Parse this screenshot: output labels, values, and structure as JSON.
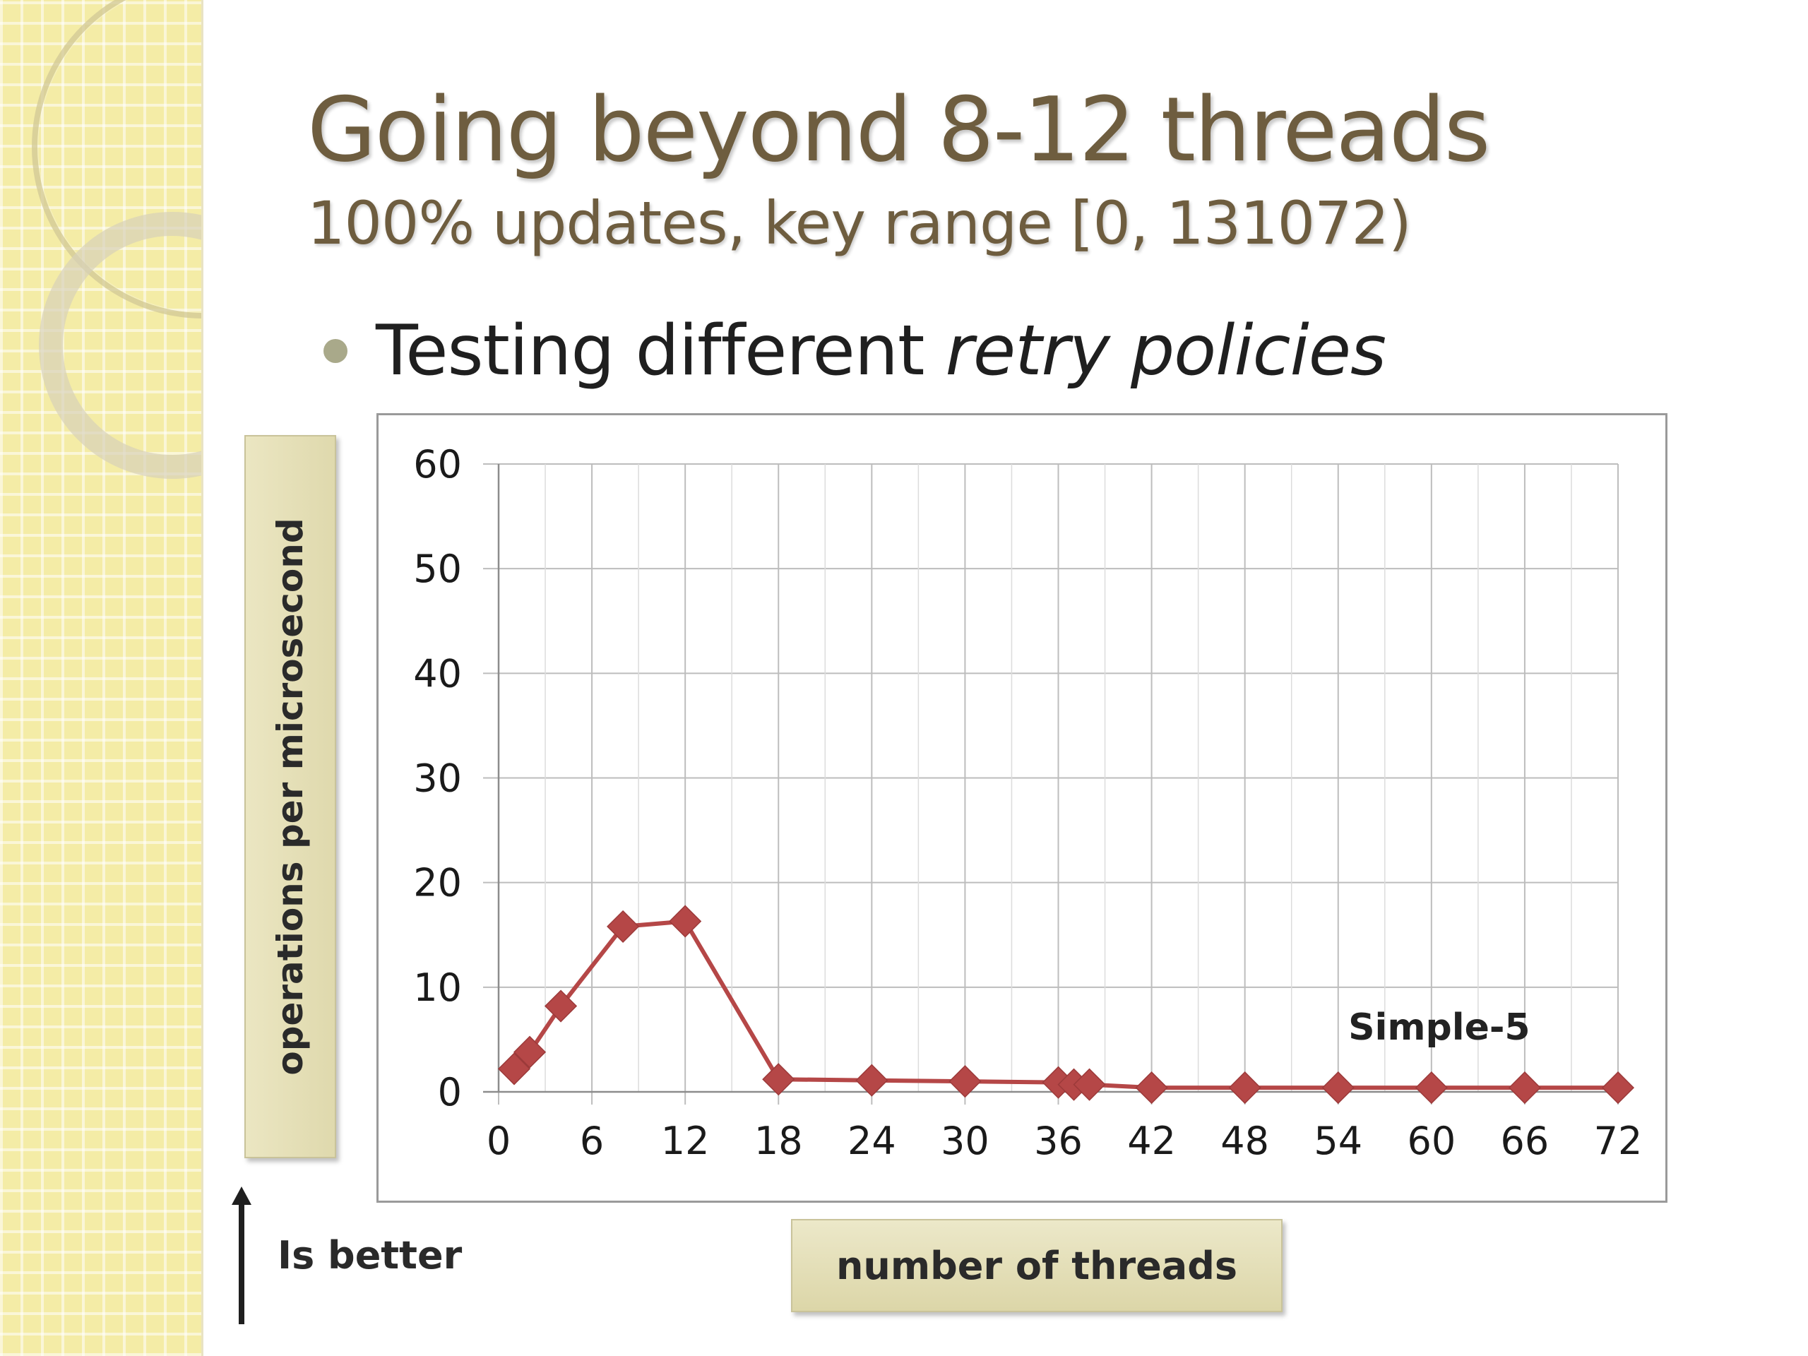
{
  "slide": {
    "title": "Going beyond 8-12 threads",
    "subtitle": "100% updates, key range [0, 131072)",
    "bullet_prefix": "Testing different ",
    "bullet_emphasis": "retry policies",
    "is_better_label": "Is better"
  },
  "chart_data": {
    "type": "line",
    "title": "",
    "xlabel": "number of threads",
    "ylabel": "operations per microsecond",
    "x_ticks": [
      0,
      6,
      12,
      18,
      24,
      30,
      36,
      42,
      48,
      54,
      60,
      66,
      72
    ],
    "y_ticks": [
      0,
      10,
      20,
      30,
      40,
      50,
      60
    ],
    "xlim": [
      0,
      72
    ],
    "ylim": [
      0,
      60
    ],
    "grid": true,
    "series": [
      {
        "name": "Simple-5",
        "color": "#b54747",
        "marker": "diamond",
        "x": [
          1,
          2,
          4,
          8,
          12,
          18,
          24,
          30,
          36,
          37,
          38,
          42,
          48,
          54,
          60,
          66,
          72
        ],
        "y": [
          2.2,
          3.8,
          8.2,
          15.8,
          16.3,
          1.2,
          1.1,
          1.0,
          0.9,
          0.7,
          0.7,
          0.4,
          0.4,
          0.4,
          0.4,
          0.4,
          0.4
        ]
      }
    ]
  }
}
